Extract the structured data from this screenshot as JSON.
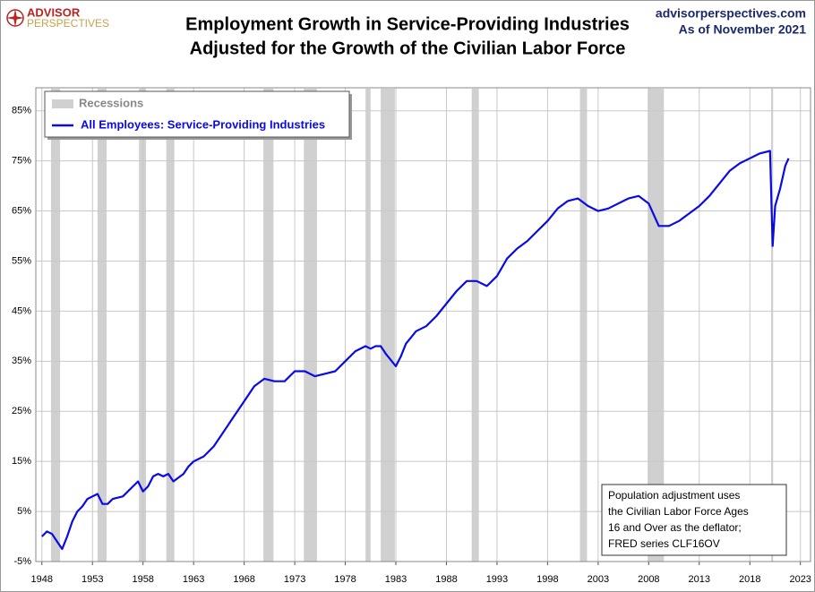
{
  "chart_data": {
    "type": "line",
    "logo": [
      "ADVISOR",
      "PERSPECTIVES"
    ],
    "title": "Employment Growth in Service-Providing Industries",
    "subtitle": "Adjusted for the Growth of the Civilian Labor Force",
    "source": "advisorperspectives.com",
    "date_note": "As of November 2021",
    "note": [
      "Population adjustment uses",
      "the Civilian Labor Force Ages",
      "16 and Over as the deflator;",
      "FRED series  CLF16OV"
    ],
    "recession_label": "Recessions",
    "recession_color": "#d0d0d0",
    "recessions": [
      [
        1948.9,
        1949.8
      ],
      [
        1953.5,
        1954.4
      ],
      [
        1957.6,
        1958.3
      ],
      [
        1960.3,
        1961.1
      ],
      [
        1969.9,
        1970.9
      ],
      [
        1973.9,
        1975.2
      ],
      [
        1980.0,
        1980.5
      ],
      [
        1981.5,
        1982.9
      ],
      [
        1990.5,
        1991.2
      ],
      [
        2001.2,
        2001.9
      ],
      [
        2007.9,
        2009.5
      ],
      [
        2020.1,
        2020.3
      ]
    ],
    "series": [
      {
        "name": "All Employees: Service-Providing Industries",
        "color": "#0a0ae6",
        "x": [
          1948,
          1948.5,
          1949,
          1949.5,
          1950,
          1950.5,
          1951,
          1951.5,
          1952,
          1952.5,
          1953,
          1953.5,
          1954,
          1954.5,
          1955,
          1956,
          1957,
          1957.5,
          1958,
          1958.5,
          1959,
          1959.5,
          1960,
          1960.5,
          1961,
          1962,
          1962.5,
          1963,
          1964,
          1965,
          1966,
          1967,
          1968,
          1969,
          1970,
          1971,
          1972,
          1973,
          1974,
          1975,
          1976,
          1977,
          1978,
          1979,
          1980,
          1980.5,
          1981,
          1981.5,
          1982,
          1983,
          1983.5,
          1984,
          1985,
          1986,
          1987,
          1988,
          1989,
          1990,
          1991,
          1992,
          1993,
          1994,
          1995,
          1996,
          1997,
          1998,
          1999,
          2000,
          2001,
          2002,
          2003,
          2004,
          2005,
          2006,
          2007,
          2008,
          2009,
          2010,
          2011,
          2012,
          2013,
          2014,
          2015,
          2016,
          2017,
          2018,
          2019,
          2020,
          2020.25,
          2020.5,
          2021,
          2021.5,
          2021.83
        ],
        "values": [
          0,
          1,
          0.5,
          -1,
          -2.5,
          0,
          3,
          5,
          6,
          7.5,
          8,
          8.5,
          6.5,
          6.5,
          7.5,
          8,
          10,
          11,
          9,
          10,
          12,
          12.5,
          12,
          12.5,
          11,
          12.5,
          14,
          15,
          16,
          18,
          21,
          24,
          27,
          30,
          31.5,
          31,
          31,
          33,
          33,
          32,
          32.5,
          33,
          35,
          37,
          38,
          37.5,
          38,
          38,
          36.5,
          34,
          36,
          38.5,
          41,
          42,
          44,
          46.5,
          49,
          51,
          51,
          50,
          52,
          55.5,
          57.5,
          59,
          61,
          63,
          65.5,
          67,
          67.5,
          66,
          65,
          65.5,
          66.5,
          67.5,
          68,
          66.5,
          62,
          62,
          63,
          64.5,
          66,
          68,
          70.5,
          73,
          74.5,
          75.5,
          76.5,
          77,
          58,
          66,
          69.5,
          74,
          75.5
        ]
      }
    ],
    "xlim": [
      1947.4,
      2024
    ],
    "xticks": [
      1948,
      1953,
      1958,
      1963,
      1968,
      1973,
      1978,
      1983,
      1988,
      1993,
      1998,
      2003,
      2008,
      2013,
      2018,
      2023
    ],
    "ylim": [
      -5,
      89.6
    ],
    "yticks": [
      {
        "value": -5,
        "label": "-5%"
      },
      {
        "value": 5,
        "label": "5%"
      },
      {
        "value": 15,
        "label": "15%"
      },
      {
        "value": 25,
        "label": "25%"
      },
      {
        "value": 35,
        "label": "35%"
      },
      {
        "value": 45,
        "label": "45%"
      },
      {
        "value": 55,
        "label": "55%"
      },
      {
        "value": 65,
        "label": "65%"
      },
      {
        "value": 75,
        "label": "75%"
      },
      {
        "value": 85,
        "label": "85%"
      }
    ],
    "grid": true
  }
}
